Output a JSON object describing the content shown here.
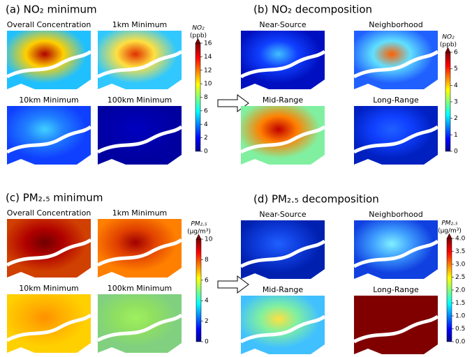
{
  "panels": [
    {
      "title": "(a) NO₂ minimum",
      "maps": [
        "Overall Concentration",
        "1km Minimum",
        "10km Minimum",
        "100km Minimum"
      ],
      "colorbar": {
        "label": "NO₂",
        "unit": "(ppb)",
        "lim": [
          0,
          16
        ],
        "ticks": [
          0,
          2,
          4,
          6,
          8,
          10,
          12,
          14,
          16
        ]
      }
    },
    {
      "title": "(b) NO₂ decomposition",
      "maps": [
        "Near-Source",
        "Neighborhood",
        "Mid-Range",
        "Long-Range"
      ],
      "colorbar": {
        "label": "NO₂",
        "unit": "(ppb)",
        "lim": [
          0,
          6
        ],
        "ticks": [
          0,
          1,
          2,
          3,
          4,
          5,
          6
        ]
      }
    },
    {
      "title": "(c) PM₂.₅ minimum",
      "maps": [
        "Overall Concentration",
        "1km Minimum",
        "10km Minimum",
        "100km Minimum"
      ],
      "colorbar": {
        "label": "PM₂.₅",
        "unit": "(μg/m³)",
        "lim": [
          0,
          10
        ],
        "ticks": [
          0,
          2,
          4,
          6,
          8,
          10
        ]
      }
    },
    {
      "title": "(d) PM₂.₅ decomposition",
      "maps": [
        "Near-Source",
        "Neighborhood",
        "Mid-Range",
        "Long-Range"
      ],
      "colorbar": {
        "label": "PM₂.₅",
        "unit": "(μg/m³)",
        "lim": [
          0,
          4
        ],
        "ticks": [
          {
            "value": 0,
            "label": "0.0"
          },
          0.5,
          {
            "value": 1,
            "label": "1.0"
          },
          1.5,
          {
            "value": 2,
            "label": "2.0"
          },
          2.5,
          {
            "value": 3,
            "label": "3.0"
          },
          3.5,
          {
            "value": 4,
            "label": "4.0"
          }
        ]
      }
    }
  ]
}
